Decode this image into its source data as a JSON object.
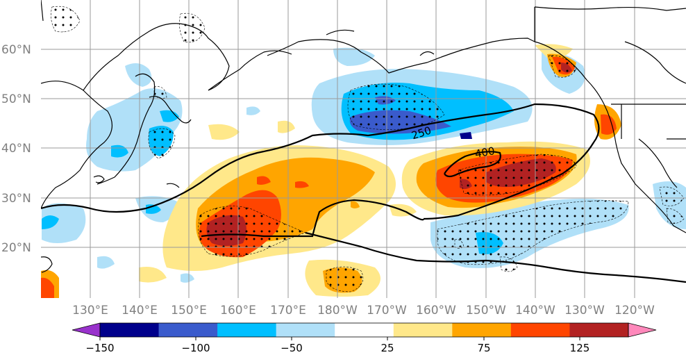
{
  "map": {
    "lat_labels": [
      "60°N",
      "50°N",
      "40°N",
      "30°N",
      "20°N"
    ],
    "lon_labels": [
      "130°E",
      "140°E",
      "150°E",
      "160°E",
      "170°E",
      "180°W",
      "170°W",
      "160°W",
      "150°W",
      "140°W",
      "130°W",
      "120°W"
    ],
    "contour_labels": [
      "250",
      "400"
    ]
  },
  "colorbar": {
    "tick_labels": [
      "−150",
      "−100",
      "−50",
      "25",
      "75",
      "125"
    ],
    "colors": [
      "#9932cc",
      "#00008b",
      "#3a5bcc",
      "#00bfff",
      "#b0e0f8",
      "#ffffff",
      "#ffe88a",
      "#ffa500",
      "#ff4500",
      "#b22222",
      "#ff88bb"
    ]
  },
  "colors": {
    "grid": "#9a9a9a",
    "coast": "#000000",
    "label": "#808080"
  }
}
